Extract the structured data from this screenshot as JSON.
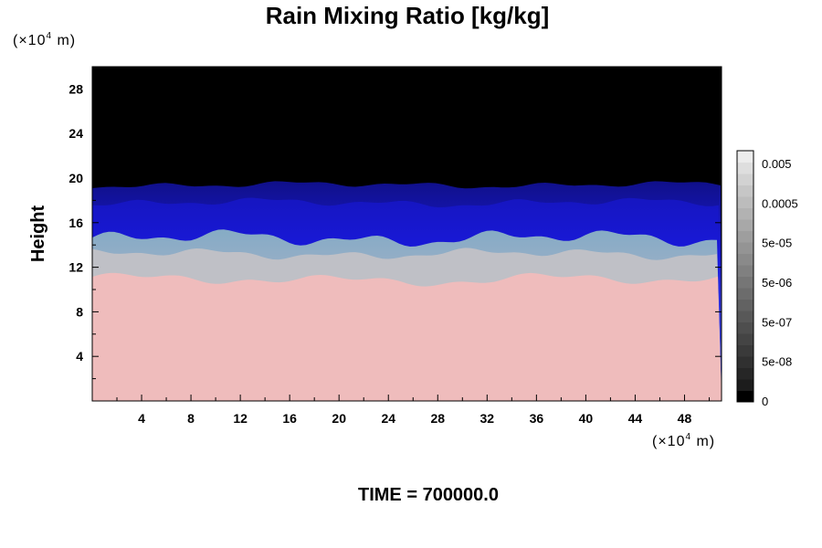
{
  "chart_data": {
    "type": "heatmap",
    "title": "Rain Mixing Ratio [kg/kg]",
    "ylabel": "Height",
    "y_unit": {
      "prefix": "(×10",
      "exp": "4",
      "suffix": " m)"
    },
    "x_unit": {
      "prefix": "(×10",
      "exp": "4",
      "suffix": " m)"
    },
    "xlim": [
      0,
      51
    ],
    "ylim": [
      0,
      30
    ],
    "x_ticks": [
      4,
      8,
      12,
      16,
      20,
      24,
      28,
      32,
      36,
      40,
      44,
      48
    ],
    "x_tick_labels": [
      "4",
      "8",
      "12",
      "16",
      "20",
      "24",
      "28",
      "32",
      "36",
      "40",
      "44",
      "48"
    ],
    "y_ticks": [
      4,
      8,
      12,
      16,
      20,
      24,
      28
    ],
    "y_tick_labels": [
      "4",
      "8",
      "12",
      "16",
      "20",
      "24",
      "28"
    ],
    "colorbar": {
      "labels": [
        "0",
        "5e-08",
        "5e-07",
        "5e-06",
        "5e-05",
        "0.0005",
        "0.005"
      ],
      "colors": [
        "#000000",
        "#1c1c1c",
        "#262626",
        "#303030",
        "#3a3a3a",
        "#444444",
        "#4e4e4e",
        "#585858",
        "#626262",
        "#6c6c6c",
        "#767676",
        "#808080",
        "#8a8a8a",
        "#949494",
        "#9e9e9e",
        "#a8a8a8",
        "#b2b2b2",
        "#bcbcbc",
        "#c6c6c6",
        "#d2d2d2",
        "#dedede",
        "#ececec"
      ]
    },
    "field_layers": [
      {
        "name": "lower",
        "color": "#efbcbc"
      },
      {
        "name": "transition",
        "color": "#bfc0c6"
      },
      {
        "name": "upper",
        "color": "#1a1ae0"
      },
      {
        "name": "top",
        "color": "#000000"
      }
    ],
    "time_label": "TIME = 700000.0"
  }
}
